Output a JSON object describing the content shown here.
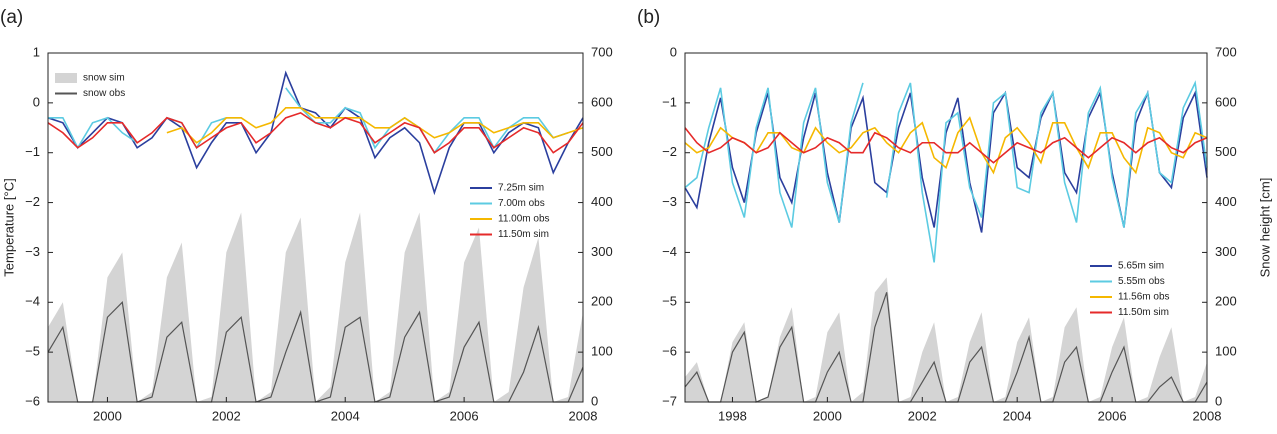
{
  "chart_data": [
    {
      "type": "line",
      "label": "(a)",
      "ylabel": "Temperature [°C]",
      "xlim": [
        1999,
        2008
      ],
      "xticks": [
        2000,
        2002,
        2004,
        2006,
        2008
      ],
      "ylim": [
        -6,
        1
      ],
      "yticks": [
        {
          "value": -6,
          "label": "−6"
        },
        {
          "value": -5,
          "label": "−5"
        },
        {
          "value": -4,
          "label": "−4"
        },
        {
          "value": -3,
          "label": "−3"
        },
        {
          "value": -2,
          "label": "−2"
        },
        {
          "value": -1,
          "label": "−1"
        },
        0,
        1
      ],
      "y2lim": [
        0,
        700
      ],
      "y2ticks": [
        0,
        100,
        200,
        300,
        400,
        500,
        600,
        700
      ],
      "x": [
        1999,
        1999.25,
        1999.5,
        1999.75,
        2000,
        2000.25,
        2000.5,
        2000.75,
        2001,
        2001.25,
        2001.5,
        2001.75,
        2002,
        2002.25,
        2002.5,
        2002.75,
        2003,
        2003.25,
        2003.5,
        2003.75,
        2004,
        2004.25,
        2004.5,
        2004.75,
        2005,
        2005.25,
        2005.5,
        2005.75,
        2006,
        2006.25,
        2006.5,
        2006.75,
        2007,
        2007.25,
        2007.5,
        2007.75,
        2008
      ],
      "series": [
        {
          "name": "snow sim",
          "type": "area",
          "axis": "y2",
          "color": "#d4d4d4",
          "values": [
            150,
            200,
            0,
            0,
            250,
            300,
            0,
            20,
            250,
            320,
            0,
            10,
            300,
            380,
            0,
            20,
            300,
            370,
            0,
            30,
            280,
            380,
            0,
            20,
            300,
            380,
            0,
            20,
            280,
            350,
            0,
            20,
            230,
            330,
            0,
            10,
            180
          ]
        },
        {
          "name": "snow obs",
          "type": "line",
          "axis": "y2",
          "color": "#555555",
          "values": [
            100,
            150,
            0,
            0,
            170,
            200,
            0,
            10,
            130,
            160,
            0,
            0,
            140,
            170,
            0,
            10,
            100,
            180,
            0,
            10,
            150,
            170,
            0,
            10,
            130,
            180,
            0,
            10,
            110,
            160,
            0,
            0,
            60,
            150,
            0,
            0,
            70
          ]
        },
        {
          "name": "7.25m sim",
          "type": "line",
          "axis": "y",
          "color": "#2b3f9e",
          "values": [
            -0.3,
            -0.4,
            -0.9,
            -0.6,
            -0.3,
            -0.4,
            -0.9,
            -0.7,
            -0.3,
            -0.5,
            -1.3,
            -0.8,
            -0.4,
            -0.4,
            -1.0,
            -0.6,
            0.6,
            -0.1,
            -0.2,
            -0.5,
            -0.1,
            -0.3,
            -1.1,
            -0.7,
            -0.5,
            -0.8,
            -1.8,
            -0.9,
            -0.4,
            -0.4,
            -1.0,
            -0.6,
            -0.4,
            -0.5,
            -1.4,
            -0.8,
            -0.3
          ]
        },
        {
          "name": "7.00m obs",
          "type": "line",
          "axis": "y",
          "color": "#5ccbe2",
          "values": [
            -0.3,
            -0.3,
            -0.9,
            -0.4,
            -0.3,
            -0.6,
            -0.8,
            null,
            -0.3,
            -0.4,
            -0.9,
            -0.4,
            -0.3,
            -0.3,
            null,
            null,
            0.3,
            -0.1,
            -0.4,
            -0.4,
            -0.1,
            -0.2,
            -0.9,
            -0.5,
            -0.3,
            -0.5,
            -1.0,
            -0.6,
            -0.3,
            -0.3,
            -0.9,
            -0.5,
            -0.3,
            -0.3,
            -0.7,
            -0.6,
            null
          ]
        },
        {
          "name": "11.00m obs",
          "type": "line",
          "axis": "y",
          "color": "#f5b800",
          "values": [
            null,
            null,
            null,
            null,
            null,
            null,
            null,
            null,
            -0.6,
            -0.5,
            -0.8,
            -0.6,
            -0.3,
            -0.3,
            -0.5,
            -0.4,
            -0.1,
            -0.1,
            -0.3,
            -0.3,
            -0.3,
            -0.3,
            -0.5,
            -0.5,
            -0.3,
            -0.5,
            -0.7,
            -0.6,
            -0.4,
            -0.4,
            -0.6,
            -0.5,
            -0.4,
            -0.4,
            -0.7,
            -0.6,
            -0.5
          ]
        },
        {
          "name": "11.50m sim",
          "type": "line",
          "axis": "y",
          "color": "#e52a2a",
          "values": [
            -0.4,
            -0.6,
            -0.9,
            -0.7,
            -0.4,
            -0.4,
            -0.8,
            -0.6,
            -0.3,
            -0.4,
            -0.9,
            -0.7,
            -0.5,
            -0.4,
            -0.8,
            -0.6,
            -0.3,
            -0.2,
            -0.4,
            -0.5,
            -0.3,
            -0.4,
            -0.8,
            -0.6,
            -0.4,
            -0.5,
            -1.0,
            -0.8,
            -0.5,
            -0.5,
            -0.9,
            -0.7,
            -0.5,
            -0.6,
            -1.0,
            -0.8,
            -0.4
          ]
        }
      ]
    },
    {
      "type": "line",
      "label": "(b)",
      "y2label": "Snow height [cm]",
      "xlim": [
        1997,
        2008
      ],
      "xticks": [
        1998,
        2000,
        2002,
        2004,
        2006,
        2008
      ],
      "ylim": [
        -7,
        0
      ],
      "yticks": [
        {
          "value": -7,
          "label": "−7"
        },
        {
          "value": -6,
          "label": "−6"
        },
        {
          "value": -5,
          "label": "−5"
        },
        {
          "value": -4,
          "label": "−4"
        },
        {
          "value": -3,
          "label": "−3"
        },
        {
          "value": -2,
          "label": "−2"
        },
        {
          "value": -1,
          "label": "−1"
        },
        0
      ],
      "y2lim": [
        0,
        700
      ],
      "y2ticks": [
        0,
        100,
        200,
        300,
        400,
        500,
        600,
        700
      ],
      "x": [
        1997,
        1997.25,
        1997.5,
        1997.75,
        1998,
        1998.25,
        1998.5,
        1998.75,
        1999,
        1999.25,
        1999.5,
        1999.75,
        2000,
        2000.25,
        2000.5,
        2000.75,
        2001,
        2001.25,
        2001.5,
        2001.75,
        2002,
        2002.25,
        2002.5,
        2002.75,
        2003,
        2003.25,
        2003.5,
        2003.75,
        2004,
        2004.25,
        2004.5,
        2004.75,
        2005,
        2005.25,
        2005.5,
        2005.75,
        2006,
        2006.25,
        2006.5,
        2006.75,
        2007,
        2007.25,
        2007.5,
        2007.75,
        2008
      ],
      "series": [
        {
          "type": "area",
          "axis": "y2",
          "color": "#d4d4d4",
          "values": [
            50,
            80,
            0,
            0,
            120,
            160,
            0,
            10,
            130,
            190,
            0,
            10,
            140,
            180,
            0,
            20,
            220,
            250,
            0,
            10,
            100,
            160,
            0,
            10,
            120,
            180,
            0,
            10,
            120,
            170,
            0,
            10,
            150,
            190,
            0,
            10,
            110,
            170,
            0,
            10,
            90,
            150,
            0,
            10,
            80
          ]
        },
        {
          "type": "line",
          "axis": "y2",
          "color": "#555555",
          "values": [
            30,
            60,
            0,
            0,
            100,
            140,
            0,
            10,
            110,
            150,
            0,
            0,
            60,
            100,
            0,
            0,
            150,
            220,
            0,
            0,
            40,
            80,
            0,
            0,
            80,
            110,
            0,
            0,
            60,
            130,
            0,
            0,
            80,
            110,
            0,
            0,
            60,
            110,
            0,
            0,
            30,
            50,
            0,
            0,
            40
          ]
        },
        {
          "name": "5.65m sim",
          "type": "line",
          "axis": "y",
          "color": "#2b3f9e",
          "values": [
            -2.7,
            -3.1,
            -1.8,
            -0.9,
            -2.3,
            -3.0,
            -1.6,
            -0.8,
            -2.5,
            -3.0,
            -1.7,
            -0.8,
            -2.4,
            -3.4,
            -1.5,
            -0.9,
            -2.6,
            -2.8,
            -1.5,
            -0.8,
            -2.5,
            -3.5,
            -1.6,
            -0.9,
            -2.6,
            -3.6,
            -1.2,
            -0.8,
            -2.3,
            -2.5,
            -1.3,
            -0.8,
            -2.4,
            -2.8,
            -1.3,
            -0.8,
            -2.4,
            -3.5,
            -1.4,
            -0.8,
            -2.4,
            -2.7,
            -1.3,
            -0.8,
            -2.5
          ]
        },
        {
          "name": "5.55m obs",
          "type": "line",
          "axis": "y",
          "color": "#5ccbe2",
          "values": [
            -2.7,
            -2.5,
            -1.5,
            -0.7,
            -2.6,
            -3.3,
            -1.5,
            -0.7,
            -2.8,
            -3.5,
            -1.4,
            -0.7,
            -2.6,
            -3.4,
            -1.4,
            -0.6,
            null,
            -2.9,
            -1.2,
            -0.6,
            -2.8,
            -4.2,
            -1.4,
            -1.2,
            -2.7,
            -3.3,
            -1.0,
            -0.8,
            -2.7,
            -2.8,
            -1.2,
            -0.8,
            -2.6,
            -3.4,
            -1.2,
            -0.7,
            -2.5,
            -3.5,
            -1.2,
            -0.8,
            -2.4,
            -2.6,
            -1.1,
            -0.6,
            -2.3
          ]
        },
        {
          "name": "11.56m obs",
          "type": "line",
          "axis": "y",
          "color": "#f5b800",
          "values": [
            -1.8,
            -2.0,
            -1.9,
            -1.5,
            -1.7,
            -1.8,
            -2.0,
            -1.6,
            -1.6,
            -1.9,
            -2.0,
            -1.5,
            -1.8,
            -2.0,
            -1.9,
            -1.6,
            -1.5,
            -1.8,
            -2.0,
            -1.6,
            -1.4,
            -2.1,
            -2.3,
            -1.6,
            -1.3,
            -2.0,
            -2.4,
            -1.7,
            -1.5,
            -1.8,
            -2.2,
            -1.4,
            -1.4,
            -1.9,
            -2.3,
            -1.6,
            -1.6,
            -2.1,
            -2.4,
            -1.5,
            -1.6,
            -2.0,
            -2.1,
            -1.6,
            -1.7
          ]
        },
        {
          "name": "11.50m sim",
          "type": "line",
          "axis": "y",
          "color": "#e52a2a",
          "values": [
            -1.5,
            -1.8,
            -2.0,
            -1.9,
            -1.7,
            -1.8,
            -2.0,
            -1.9,
            -1.6,
            -1.8,
            -2.0,
            -1.9,
            -1.7,
            -1.8,
            -2.0,
            -2.0,
            -1.6,
            -1.7,
            -1.9,
            -2.0,
            -1.8,
            -1.8,
            -2.0,
            -2.0,
            -1.8,
            -2.0,
            -2.2,
            -2.0,
            -1.8,
            -1.9,
            -2.0,
            -1.8,
            -1.7,
            -1.9,
            -2.1,
            -1.9,
            -1.7,
            -1.8,
            -2.0,
            -1.8,
            -1.7,
            -1.9,
            -2.0,
            -1.8,
            -1.7
          ]
        }
      ]
    }
  ]
}
